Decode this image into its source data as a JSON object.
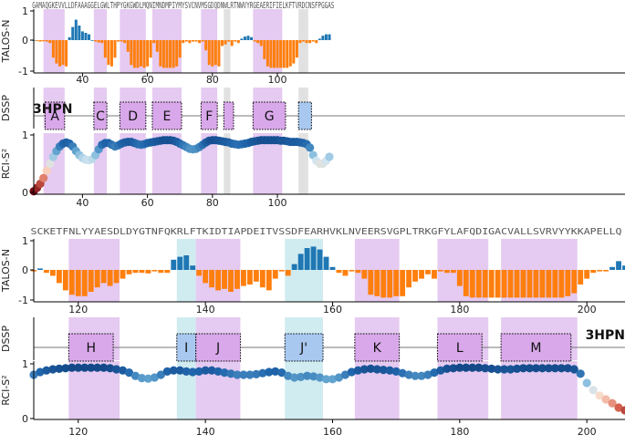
{
  "chart_data": [
    {
      "type": "bar",
      "block": "top",
      "ylabel": "TALOS-N",
      "yticks": [
        "1",
        "0",
        "-1"
      ],
      "ylim": [
        -1,
        1
      ],
      "xlim": [
        25,
        207
      ],
      "xticks": [
        40,
        60,
        80,
        100
      ],
      "sequence": "GAMAQGKEVVLLDFAAAGGELGWLTHPYGKGWDLMQNIMNDMPIYMYSVCNVMSGDQDNWLRTNWVYRGEAERIFIELKFTVRDCNSFPGGAS",
      "colors": {
        "helix": "#ff7f0e",
        "strand": "#1f77b4"
      },
      "x": [
        25,
        26,
        27,
        28,
        29,
        30,
        31,
        32,
        33,
        34,
        35,
        36,
        37,
        38,
        39,
        40,
        41,
        42,
        43,
        44,
        45,
        46,
        47,
        48,
        49,
        50,
        51,
        52,
        53,
        54,
        55,
        56,
        57,
        58,
        59,
        60,
        61,
        62,
        63,
        64,
        65,
        66,
        67,
        68,
        69,
        70,
        71,
        72,
        73,
        74,
        75,
        76,
        77,
        78,
        79,
        80,
        81,
        82,
        83,
        84,
        85,
        86,
        87,
        88,
        89,
        90,
        91,
        92,
        93,
        94,
        95,
        96,
        97,
        98,
        99,
        100,
        101,
        102,
        103,
        104,
        105,
        106,
        107,
        108,
        109,
        110,
        111,
        112,
        113,
        114,
        115,
        116
      ],
      "values": [
        0,
        -0.03,
        -0.05,
        -0.04,
        -0.05,
        -0.1,
        -0.6,
        -0.8,
        -0.9,
        -0.85,
        -0.9,
        0.1,
        0.45,
        0.7,
        0.5,
        0.3,
        0.25,
        0.2,
        0,
        -0.05,
        -0.08,
        -0.1,
        -0.6,
        -0.85,
        -0.9,
        -0.6,
        -0.05,
        -0.05,
        -0.1,
        -0.4,
        -0.85,
        -0.95,
        -0.95,
        -0.9,
        -0.95,
        -0.9,
        -0.6,
        -0.1,
        -0.4,
        -0.9,
        -0.95,
        -0.95,
        -0.95,
        -0.95,
        -0.9,
        -0.6,
        -0.1,
        -0.05,
        -0.1,
        -0.05,
        -0.05,
        -0.1,
        -0.05,
        -0.35,
        -0.85,
        -0.9,
        -0.85,
        -0.9,
        -0.2,
        -0.15,
        -0.05,
        -0.2,
        -0.05,
        -0.1,
        0.05,
        0.12,
        0.15,
        0.1,
        -0.05,
        -0.1,
        -0.2,
        -0.65,
        -0.9,
        -0.95,
        -0.95,
        -0.95,
        -0.95,
        -0.95,
        -0.95,
        -0.9,
        -0.8,
        -0.6,
        -0.1,
        -0.05,
        -0.1,
        -0.1,
        -0.05,
        -0.1,
        0.05,
        0.15,
        0.2,
        0.2
      ]
    },
    {
      "type": "dssp",
      "block": "top",
      "ylabel": "DSSP",
      "pdb_label": "3HPN",
      "elements": [
        {
          "label": "A",
          "kind": "helix",
          "start": 29,
          "end": 34
        },
        {
          "label": "C",
          "kind": "helix",
          "start": 44,
          "end": 47
        },
        {
          "label": "D",
          "kind": "helix",
          "start": 52,
          "end": 59
        },
        {
          "label": "E",
          "kind": "helix",
          "start": 62,
          "end": 70
        },
        {
          "label": "F",
          "kind": "helix",
          "start": 77,
          "end": 81
        },
        {
          "label": "",
          "kind": "helix",
          "start": 84,
          "end": 86
        },
        {
          "label": "G",
          "kind": "helix",
          "start": 93,
          "end": 102
        },
        {
          "label": "",
          "kind": "strand",
          "start": 107,
          "end": 110
        }
      ],
      "shaded": [
        {
          "start": 28,
          "end": 34.5,
          "color": "#cf9fe6"
        },
        {
          "start": 43.5,
          "end": 47.5,
          "color": "#cf9fe6"
        },
        {
          "start": 51.5,
          "end": 59.5,
          "color": "#cf9fe6"
        },
        {
          "start": 61.5,
          "end": 70.5,
          "color": "#cf9fe6"
        },
        {
          "start": 76.5,
          "end": 81.5,
          "color": "#cf9fe6"
        },
        {
          "start": 83.5,
          "end": 85.5,
          "color": "#c8c8c8"
        },
        {
          "start": 92.5,
          "end": 101.5,
          "color": "#cf9fe6"
        },
        {
          "start": 106.5,
          "end": 109.5,
          "color": "#c8c8c8"
        }
      ]
    },
    {
      "type": "scatter",
      "block": "top",
      "ylabel": "RCI-S²",
      "yticks": [
        "1",
        "0"
      ],
      "ylim": [
        0,
        1
      ],
      "xticks": [
        40,
        60,
        80,
        100
      ],
      "x": [
        25,
        26,
        27,
        28,
        29,
        30,
        31,
        32,
        33,
        34,
        35,
        36,
        37,
        38,
        39,
        40,
        41,
        42,
        43,
        44,
        45,
        46,
        47,
        48,
        49,
        50,
        51,
        52,
        53,
        54,
        55,
        56,
        57,
        58,
        59,
        60,
        61,
        62,
        63,
        64,
        65,
        66,
        67,
        68,
        69,
        70,
        71,
        72,
        73,
        74,
        75,
        76,
        77,
        78,
        79,
        80,
        81,
        82,
        83,
        84,
        85,
        86,
        87,
        88,
        89,
        90,
        91,
        92,
        93,
        94,
        95,
        96,
        97,
        98,
        99,
        100,
        101,
        102,
        103,
        104,
        105,
        106,
        107,
        108,
        109,
        110,
        111,
        112,
        113,
        114,
        115,
        116
      ],
      "values": [
        0.02,
        0.08,
        0.15,
        0.25,
        0.38,
        0.5,
        0.62,
        0.72,
        0.8,
        0.85,
        0.87,
        0.85,
        0.8,
        0.72,
        0.65,
        0.6,
        0.57,
        0.56,
        0.58,
        0.65,
        0.75,
        0.83,
        0.86,
        0.86,
        0.83,
        0.8,
        0.82,
        0.85,
        0.87,
        0.88,
        0.88,
        0.86,
        0.84,
        0.83,
        0.84,
        0.86,
        0.87,
        0.88,
        0.89,
        0.9,
        0.91,
        0.91,
        0.91,
        0.9,
        0.88,
        0.85,
        0.82,
        0.79,
        0.76,
        0.75,
        0.76,
        0.79,
        0.83,
        0.87,
        0.9,
        0.91,
        0.91,
        0.9,
        0.89,
        0.88,
        0.87,
        0.85,
        0.84,
        0.83,
        0.84,
        0.85,
        0.86,
        0.88,
        0.89,
        0.9,
        0.91,
        0.91,
        0.91,
        0.91,
        0.91,
        0.91,
        0.9,
        0.9,
        0.89,
        0.88,
        0.88,
        0.88,
        0.87,
        0.86,
        0.84,
        0.78,
        0.65,
        0.55,
        0.5,
        0.5,
        0.55,
        0.62
      ]
    },
    {
      "type": "bar",
      "block": "bottom",
      "ylabel": "TALOS-N",
      "yticks": [
        "1",
        "0",
        "-1"
      ],
      "ylim": [
        -1,
        1
      ],
      "xlim": [
        113,
        206
      ],
      "xticks": [
        120,
        140,
        160,
        180,
        200
      ],
      "sequence": "SCKETFNLYYAESDLDYGTNFQKRLFTKIDTIAPDEITVSSDFEARHVKLNVEERSVGPLTRKGFYLAFQDIGACVALLSVRVYYKKAPELLQ",
      "x": [
        113,
        114,
        115,
        116,
        117,
        118,
        119,
        120,
        121,
        122,
        123,
        124,
        125,
        126,
        127,
        128,
        129,
        130,
        131,
        132,
        133,
        134,
        135,
        136,
        137,
        138,
        139,
        140,
        141,
        142,
        143,
        144,
        145,
        146,
        147,
        148,
        149,
        150,
        151,
        152,
        153,
        154,
        155,
        156,
        157,
        158,
        159,
        160,
        161,
        162,
        163,
        164,
        165,
        166,
        167,
        168,
        169,
        170,
        171,
        172,
        173,
        174,
        175,
        176,
        177,
        178,
        179,
        180,
        181,
        182,
        183,
        184,
        185,
        186,
        187,
        188,
        189,
        190,
        191,
        192,
        193,
        194,
        195,
        196,
        197,
        198,
        199,
        200,
        201,
        202,
        203,
        204,
        205,
        206
      ],
      "values": [
        -0.05,
        0.05,
        -0.1,
        -0.2,
        -0.45,
        -0.7,
        -0.85,
        -0.9,
        -0.9,
        -0.75,
        -0.6,
        -0.45,
        -0.55,
        -0.45,
        -0.3,
        -0.15,
        -0.1,
        -0.1,
        -0.12,
        -0.05,
        -0.1,
        -0.1,
        0.35,
        0.45,
        0.5,
        0.15,
        -0.2,
        -0.45,
        -0.6,
        -0.7,
        -0.65,
        -0.75,
        -0.65,
        -0.55,
        -0.5,
        -0.4,
        -0.6,
        -0.7,
        -0.3,
        -0.05,
        -0.2,
        0.2,
        0.55,
        0.75,
        0.8,
        0.7,
        0.45,
        0.1,
        -0.1,
        -0.2,
        -0.05,
        -0.1,
        -0.3,
        -0.85,
        -0.9,
        -0.95,
        -0.95,
        -0.9,
        -0.9,
        -0.6,
        -0.4,
        -0.3,
        -0.15,
        -0.3,
        -0.05,
        -0.1,
        -0.1,
        -0.55,
        -0.9,
        -0.95,
        -0.95,
        -0.95,
        -0.95,
        -0.95,
        -0.95,
        -0.95,
        -0.95,
        -0.95,
        -0.95,
        -0.95,
        -0.95,
        -0.95,
        -0.95,
        -0.95,
        -0.9,
        -0.8,
        -0.5,
        -0.3,
        -0.1,
        -0.05,
        -0.05,
        0.1,
        0.3,
        0.15
      ]
    },
    {
      "type": "dssp",
      "block": "bottom",
      "ylabel": "DSSP",
      "pdb_label": "3HPN",
      "elements": [
        {
          "label": "H",
          "kind": "helix",
          "start": 119,
          "end": 125
        },
        {
          "label": "I",
          "kind": "strand",
          "start": 136,
          "end": 138
        },
        {
          "label": "J",
          "kind": "helix",
          "start": 139,
          "end": 145
        },
        {
          "label": "J'",
          "kind": "strand",
          "start": 153,
          "end": 158
        },
        {
          "label": "K",
          "kind": "helix",
          "start": 164,
          "end": 170
        },
        {
          "label": "L",
          "kind": "helix",
          "start": 177,
          "end": 183
        },
        {
          "label": "M",
          "kind": "helix",
          "start": 187,
          "end": 197
        }
      ],
      "shaded": [
        {
          "start": 118.5,
          "end": 126.5,
          "color": "#cf9fe6"
        },
        {
          "start": 135.5,
          "end": 138.5,
          "color": "#a9dde6"
        },
        {
          "start": 138.5,
          "end": 145.5,
          "color": "#cf9fe6"
        },
        {
          "start": 152.5,
          "end": 158.5,
          "color": "#a9dde6"
        },
        {
          "start": 163.5,
          "end": 170.5,
          "color": "#cf9fe6"
        },
        {
          "start": 176.5,
          "end": 184.5,
          "color": "#cf9fe6"
        },
        {
          "start": 186.5,
          "end": 198.5,
          "color": "#cf9fe6"
        }
      ]
    },
    {
      "type": "scatter",
      "block": "bottom",
      "ylabel": "RCI-S²",
      "yticks": [
        "1",
        "0"
      ],
      "ylim": [
        0,
        1
      ],
      "xticks": [
        120,
        140,
        160,
        180,
        200
      ],
      "x": [
        113,
        114,
        115,
        116,
        117,
        118,
        119,
        120,
        121,
        122,
        123,
        124,
        125,
        126,
        127,
        128,
        129,
        130,
        131,
        132,
        133,
        134,
        135,
        136,
        137,
        138,
        139,
        140,
        141,
        142,
        143,
        144,
        145,
        146,
        147,
        148,
        149,
        150,
        151,
        152,
        153,
        154,
        155,
        156,
        157,
        158,
        159,
        160,
        161,
        162,
        163,
        164,
        165,
        166,
        167,
        168,
        169,
        170,
        171,
        172,
        173,
        174,
        175,
        176,
        177,
        178,
        179,
        180,
        181,
        182,
        183,
        184,
        185,
        186,
        187,
        188,
        189,
        190,
        191,
        192,
        193,
        194,
        195,
        196,
        197,
        198,
        199,
        200,
        201,
        202,
        203,
        204,
        205,
        206
      ],
      "values": [
        0.8,
        0.85,
        0.88,
        0.9,
        0.91,
        0.92,
        0.93,
        0.93,
        0.93,
        0.93,
        0.93,
        0.93,
        0.92,
        0.9,
        0.88,
        0.84,
        0.78,
        0.74,
        0.73,
        0.75,
        0.8,
        0.86,
        0.88,
        0.88,
        0.86,
        0.85,
        0.86,
        0.88,
        0.88,
        0.86,
        0.84,
        0.82,
        0.8,
        0.8,
        0.8,
        0.81,
        0.83,
        0.85,
        0.86,
        0.84,
        0.78,
        0.75,
        0.76,
        0.78,
        0.77,
        0.75,
        0.72,
        0.72,
        0.75,
        0.8,
        0.85,
        0.88,
        0.9,
        0.91,
        0.9,
        0.89,
        0.88,
        0.86,
        0.83,
        0.8,
        0.78,
        0.78,
        0.8,
        0.84,
        0.88,
        0.91,
        0.92,
        0.93,
        0.93,
        0.93,
        0.93,
        0.92,
        0.91,
        0.9,
        0.9,
        0.9,
        0.91,
        0.92,
        0.92,
        0.92,
        0.92,
        0.92,
        0.92,
        0.92,
        0.92,
        0.9,
        0.82,
        0.65,
        0.52,
        0.42,
        0.35,
        0.28,
        0.2,
        0.15
      ]
    }
  ]
}
